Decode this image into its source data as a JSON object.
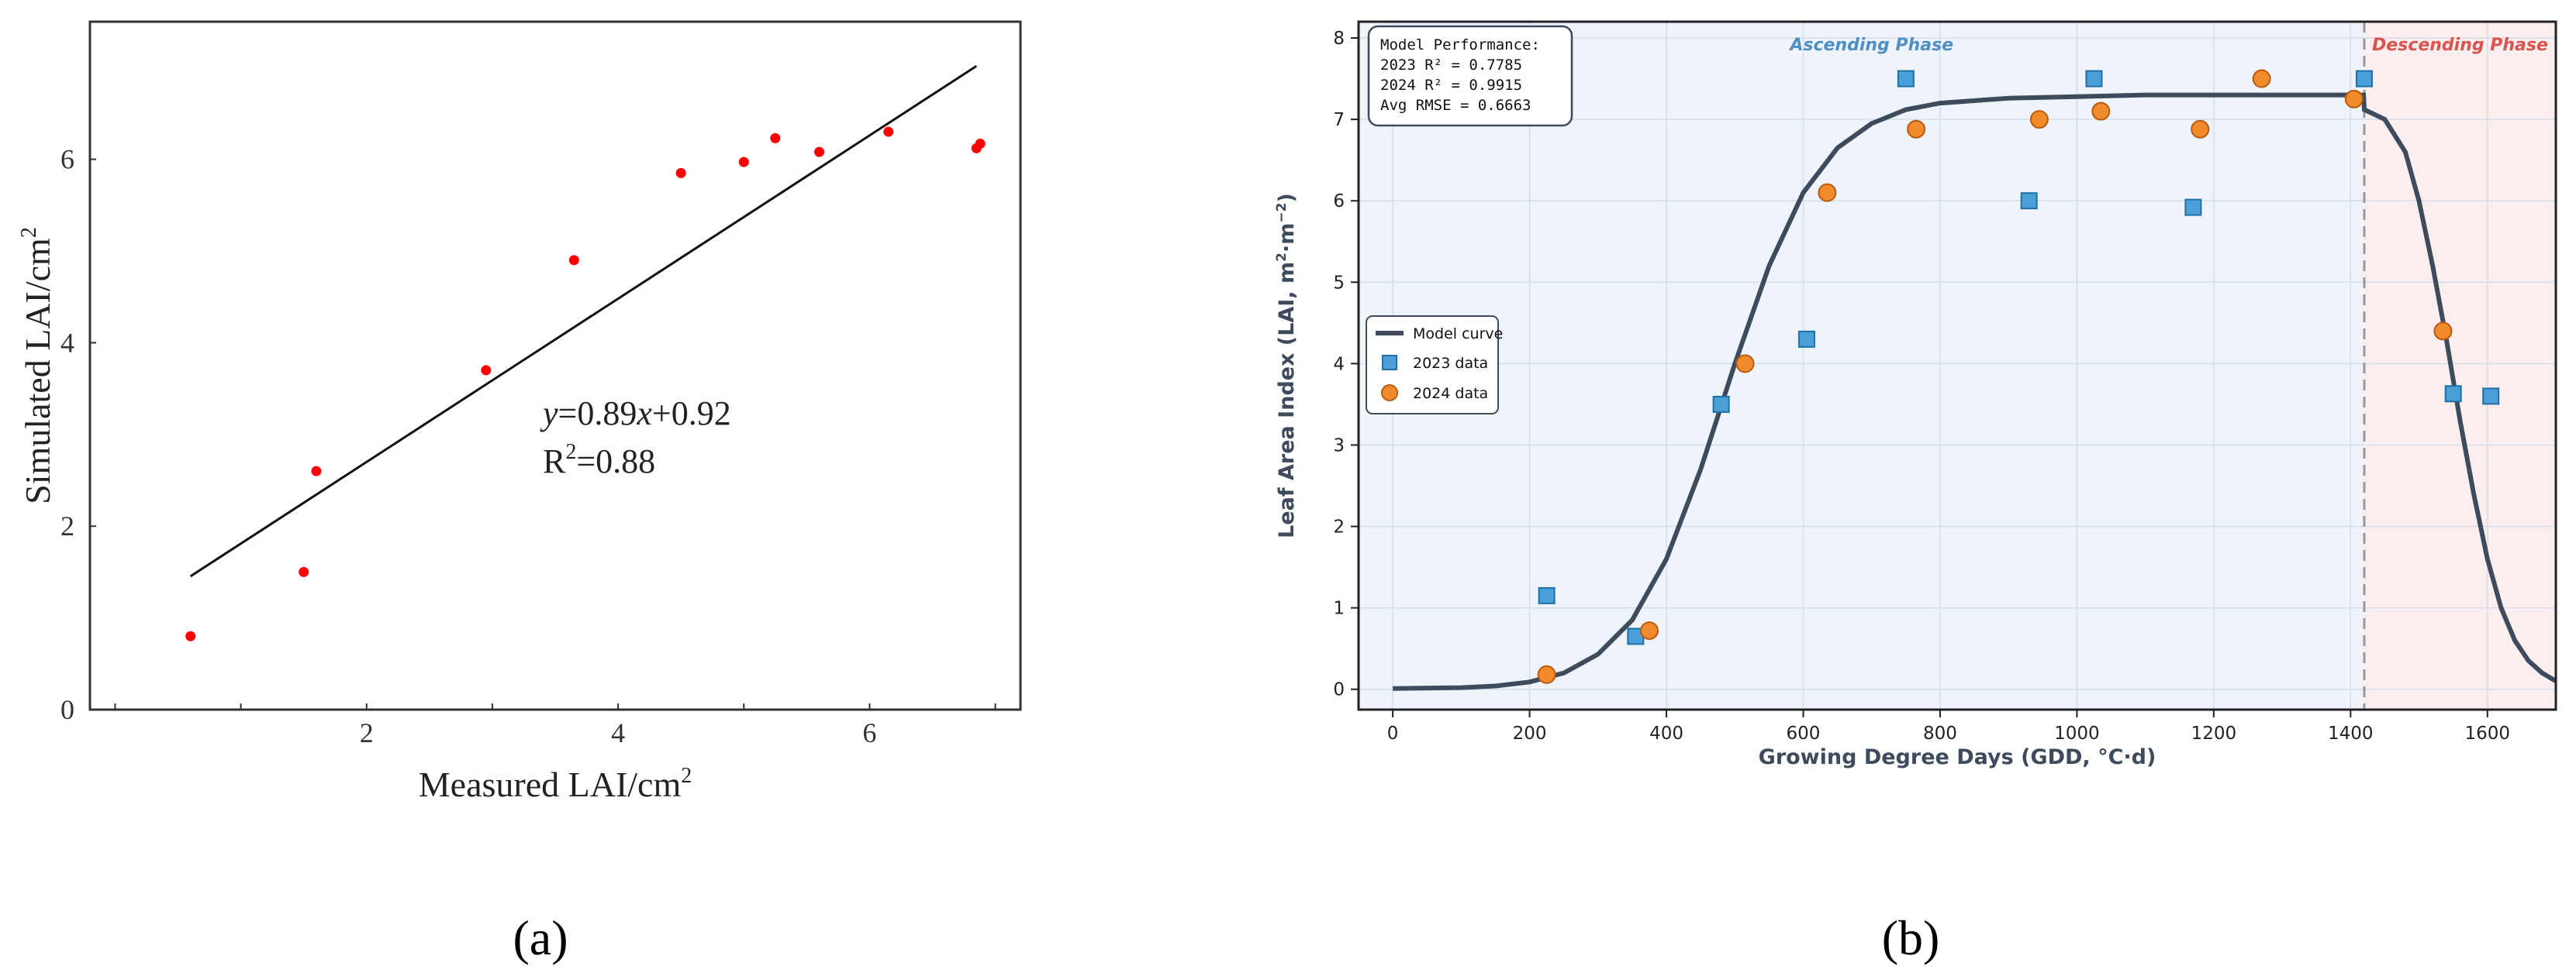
{
  "panel_a": {
    "label": "(a)",
    "chart_data": {
      "type": "scatter",
      "xlabel": "Measured LAI/cm",
      "xlabel_sup": "2",
      "ylabel": "Simulated LAI/cm",
      "ylabel_sup": "2",
      "xlim": [
        -0.2,
        7.2
      ],
      "ylim": [
        0,
        7.5
      ],
      "xticks": [
        2,
        4,
        6
      ],
      "xminor": [
        0,
        1,
        2,
        3,
        4,
        5,
        6,
        7
      ],
      "yticks": [
        0,
        2,
        4,
        6
      ],
      "grid": false,
      "point_color": "#ff0000",
      "points": [
        {
          "x": 0.6,
          "y": 0.8
        },
        {
          "x": 1.5,
          "y": 1.5
        },
        {
          "x": 1.6,
          "y": 2.6
        },
        {
          "x": 2.95,
          "y": 3.7
        },
        {
          "x": 3.65,
          "y": 4.9
        },
        {
          "x": 4.5,
          "y": 5.85
        },
        {
          "x": 5.0,
          "y": 5.97
        },
        {
          "x": 5.25,
          "y": 6.23
        },
        {
          "x": 5.6,
          "y": 6.08
        },
        {
          "x": 6.15,
          "y": 6.3
        },
        {
          "x": 6.85,
          "y": 6.12
        },
        {
          "x": 6.88,
          "y": 6.17
        }
      ],
      "fit_line": {
        "slope": 0.89,
        "intercept": 0.92,
        "x_range": [
          0.6,
          6.85
        ]
      },
      "annotation": {
        "eq_y": "y",
        "eq_rest": "=0.89",
        "eq_x": "x",
        "eq_tail": "+0.92",
        "r2_label": "R",
        "r2_sup": "2",
        "r2_value": "=0.88"
      }
    }
  },
  "panel_b": {
    "label": "(b)",
    "chart_data": {
      "type": "scatter",
      "xlabel": "Growing Degree Days (GDD, °C·d)",
      "ylabel": "Leaf Area Index (LAI, m",
      "ylabel_sup1": "2",
      "ylabel_mid": "·m",
      "ylabel_sup2": "−2",
      "ylabel_end": ")",
      "xlim": [
        -50,
        1700
      ],
      "ylim": [
        -0.25,
        8.2
      ],
      "xticks": [
        0,
        200,
        400,
        600,
        800,
        1000,
        1200,
        1400,
        1600
      ],
      "yticks": [
        0,
        1,
        2,
        3,
        4,
        5,
        6,
        7,
        8
      ],
      "grid": true,
      "phase_boundary": 1420,
      "phases": [
        {
          "label": "Ascending Phase",
          "color": "#4f8fc2",
          "fill": "#eef4fa"
        },
        {
          "label": "Descending Phase",
          "color": "#d9534f",
          "fill": "#fbeeee"
        }
      ],
      "model_curve": {
        "name": "Model curve",
        "color": "#3d4b5c",
        "points": [
          [
            0,
            0.01
          ],
          [
            100,
            0.02
          ],
          [
            150,
            0.04
          ],
          [
            200,
            0.09
          ],
          [
            250,
            0.2
          ],
          [
            300,
            0.43
          ],
          [
            350,
            0.85
          ],
          [
            400,
            1.6
          ],
          [
            450,
            2.7
          ],
          [
            500,
            4.0
          ],
          [
            550,
            5.2
          ],
          [
            600,
            6.1
          ],
          [
            650,
            6.65
          ],
          [
            700,
            6.95
          ],
          [
            750,
            7.12
          ],
          [
            800,
            7.2
          ],
          [
            900,
            7.26
          ],
          [
            1000,
            7.28
          ],
          [
            1100,
            7.3
          ],
          [
            1200,
            7.3
          ],
          [
            1300,
            7.3
          ],
          [
            1419,
            7.3
          ],
          [
            1420,
            7.12
          ],
          [
            1450,
            7.0
          ],
          [
            1480,
            6.6
          ],
          [
            1500,
            6.0
          ],
          [
            1520,
            5.2
          ],
          [
            1540,
            4.3
          ],
          [
            1560,
            3.3
          ],
          [
            1580,
            2.4
          ],
          [
            1600,
            1.6
          ],
          [
            1620,
            1.0
          ],
          [
            1640,
            0.6
          ],
          [
            1660,
            0.35
          ],
          [
            1680,
            0.2
          ],
          [
            1700,
            0.1
          ]
        ]
      },
      "series": [
        {
          "name": "2023 data",
          "marker": "square",
          "color": "#4a9fd6",
          "edge": "#1f6fa8",
          "points": [
            [
              225,
              1.15
            ],
            [
              355,
              0.65
            ],
            [
              480,
              3.5
            ],
            [
              605,
              4.3
            ],
            [
              750,
              7.5
            ],
            [
              930,
              6.0
            ],
            [
              1025,
              7.5
            ],
            [
              1170,
              5.92
            ],
            [
              1420,
              7.5
            ],
            [
              1550,
              3.63
            ],
            [
              1605,
              3.6
            ]
          ]
        },
        {
          "name": "2024 data",
          "marker": "circle",
          "color": "#f08a2b",
          "edge": "#b85a10",
          "points": [
            [
              225,
              0.18
            ],
            [
              375,
              0.72
            ],
            [
              515,
              4.0
            ],
            [
              635,
              6.1
            ],
            [
              765,
              6.88
            ],
            [
              945,
              7.0
            ],
            [
              1035,
              7.1
            ],
            [
              1180,
              6.88
            ],
            [
              1270,
              7.5
            ],
            [
              1405,
              7.25
            ],
            [
              1535,
              4.4
            ]
          ]
        }
      ],
      "legend_position": "middle-left",
      "stats_box": {
        "title": "Model Performance:",
        "lines": [
          "2023 R² = 0.7785",
          "2024 R² = 0.9915",
          "Avg RMSE = 0.6663"
        ]
      }
    }
  }
}
